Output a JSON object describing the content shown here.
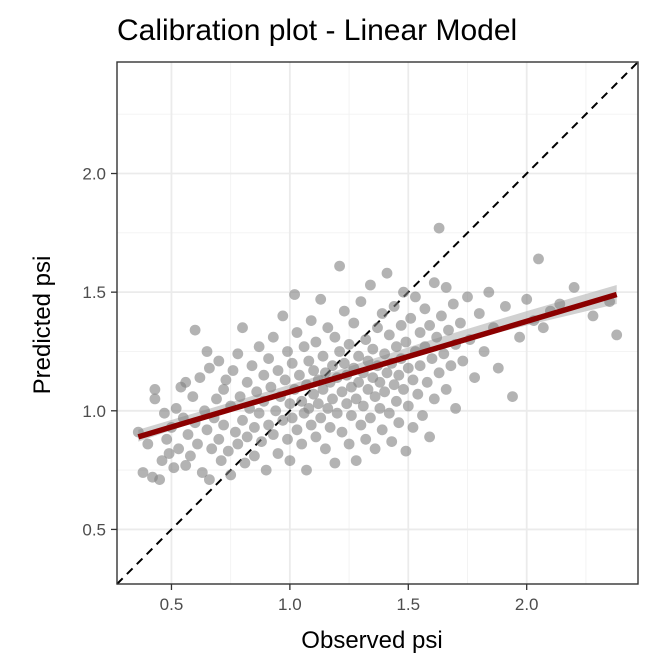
{
  "chart_data": {
    "type": "scatter",
    "title": "Calibration plot - Linear Model",
    "xlabel": "Observed psi",
    "ylabel": "Predicted psi",
    "xlim": [
      0.27,
      2.47
    ],
    "ylim": [
      0.27,
      2.47
    ],
    "x_ticks": [
      0.5,
      1.0,
      1.5,
      2.0
    ],
    "x_tick_labels": [
      "0.5",
      "1.0",
      "1.5",
      "2.0"
    ],
    "y_ticks": [
      0.5,
      1.0,
      1.5,
      2.0
    ],
    "y_tick_labels": [
      "0.5",
      "1.0",
      "1.5",
      "2.0"
    ],
    "grid": true,
    "point_color": "#808080",
    "fit_color": "#8B0000",
    "ribbon_color": "#bdbdbd",
    "reference_line": {
      "slope": 1,
      "intercept": 0,
      "style": "dashed",
      "color": "#000000"
    },
    "fit_line": {
      "x": [
        0.36,
        2.38
      ],
      "y": [
        0.89,
        1.49
      ]
    },
    "ribbon": {
      "x": [
        0.36,
        0.8,
        1.2,
        1.6,
        2.0,
        2.38
      ],
      "lower": [
        0.87,
        1.02,
        1.14,
        1.26,
        1.36,
        1.45
      ],
      "upper": [
        0.92,
        1.05,
        1.17,
        1.3,
        1.42,
        1.53
      ]
    },
    "points": [
      [
        0.36,
        0.91
      ],
      [
        0.38,
        0.74
      ],
      [
        0.4,
        0.86
      ],
      [
        0.42,
        0.72
      ],
      [
        0.43,
        1.09
      ],
      [
        0.43,
        1.05
      ],
      [
        0.45,
        0.71
      ],
      [
        0.46,
        0.79
      ],
      [
        0.47,
        0.99
      ],
      [
        0.48,
        0.88
      ],
      [
        0.49,
        0.82
      ],
      [
        0.5,
        0.93
      ],
      [
        0.51,
        0.76
      ],
      [
        0.52,
        1.01
      ],
      [
        0.53,
        0.84
      ],
      [
        0.54,
        1.1
      ],
      [
        0.55,
        0.97
      ],
      [
        0.56,
        0.77
      ],
      [
        0.56,
        1.12
      ],
      [
        0.57,
        0.9
      ],
      [
        0.58,
        0.81
      ],
      [
        0.59,
        1.06
      ],
      [
        0.6,
        0.95
      ],
      [
        0.6,
        1.34
      ],
      [
        0.61,
        0.86
      ],
      [
        0.62,
        1.14
      ],
      [
        0.63,
        0.74
      ],
      [
        0.64,
        1.0
      ],
      [
        0.65,
        0.92
      ],
      [
        0.65,
        1.25
      ],
      [
        0.66,
        0.71
      ],
      [
        0.66,
        1.18
      ],
      [
        0.67,
        0.84
      ],
      [
        0.68,
        0.97
      ],
      [
        0.69,
        1.05
      ],
      [
        0.7,
        0.88
      ],
      [
        0.7,
        1.21
      ],
      [
        0.71,
        0.79
      ],
      [
        0.72,
        1.09
      ],
      [
        0.72,
        0.94
      ],
      [
        0.73,
        1.13
      ],
      [
        0.74,
        0.83
      ],
      [
        0.75,
        1.02
      ],
      [
        0.75,
        0.73
      ],
      [
        0.76,
        1.17
      ],
      [
        0.77,
        0.91
      ],
      [
        0.78,
        1.24
      ],
      [
        0.78,
        0.86
      ],
      [
        0.79,
        1.06
      ],
      [
        0.8,
        0.96
      ],
      [
        0.8,
        1.35
      ],
      [
        0.81,
        0.78
      ],
      [
        0.82,
        1.12
      ],
      [
        0.82,
        0.89
      ],
      [
        0.83,
        1.01
      ],
      [
        0.84,
        1.19
      ],
      [
        0.85,
        0.93
      ],
      [
        0.85,
        0.81
      ],
      [
        0.86,
        1.08
      ],
      [
        0.87,
        1.27
      ],
      [
        0.87,
        0.99
      ],
      [
        0.88,
        0.87
      ],
      [
        0.89,
        1.15
      ],
      [
        0.89,
        1.04
      ],
      [
        0.9,
        0.75
      ],
      [
        0.91,
        0.94
      ],
      [
        0.91,
        1.22
      ],
      [
        0.92,
        1.1
      ],
      [
        0.93,
        0.9
      ],
      [
        0.93,
        1.31
      ],
      [
        0.94,
        1.0
      ],
      [
        0.95,
        0.82
      ],
      [
        0.95,
        1.17
      ],
      [
        0.96,
        1.06
      ],
      [
        0.97,
        0.96
      ],
      [
        0.97,
        1.4
      ],
      [
        0.98,
        1.13
      ],
      [
        0.99,
        0.88
      ],
      [
        0.99,
        1.25
      ],
      [
        1.0,
        1.03
      ],
      [
        1.0,
        0.79
      ],
      [
        1.01,
        1.2
      ],
      [
        1.01,
        0.97
      ],
      [
        1.02,
        1.49
      ],
      [
        1.02,
        1.09
      ],
      [
        1.03,
        0.92
      ],
      [
        1.03,
        1.33
      ],
      [
        1.04,
        1.15
      ],
      [
        1.05,
        0.86
      ],
      [
        1.05,
        1.04
      ],
      [
        1.06,
        1.27
      ],
      [
        1.06,
        0.99
      ],
      [
        1.07,
        1.11
      ],
      [
        1.07,
        0.75
      ],
      [
        1.08,
        1.21
      ],
      [
        1.08,
        1.01
      ],
      [
        1.09,
        0.94
      ],
      [
        1.09,
        1.38
      ],
      [
        1.1,
        1.07
      ],
      [
        1.1,
        1.17
      ],
      [
        1.11,
        0.89
      ],
      [
        1.11,
        1.29
      ],
      [
        1.12,
        1.03
      ],
      [
        1.12,
        1.13
      ],
      [
        1.13,
        0.97
      ],
      [
        1.13,
        1.47
      ],
      [
        1.14,
        1.09
      ],
      [
        1.14,
        1.23
      ],
      [
        1.15,
        0.84
      ],
      [
        1.15,
        1.16
      ],
      [
        1.16,
        1.01
      ],
      [
        1.16,
        1.35
      ],
      [
        1.17,
        1.12
      ],
      [
        1.17,
        0.93
      ],
      [
        1.18,
        1.19
      ],
      [
        1.18,
        1.05
      ],
      [
        1.19,
        1.31
      ],
      [
        1.19,
        0.78
      ],
      [
        1.2,
        1.14
      ],
      [
        1.2,
        0.99
      ],
      [
        1.21,
        1.25
      ],
      [
        1.21,
        1.61
      ],
      [
        1.22,
        1.08
      ],
      [
        1.22,
        0.91
      ],
      [
        1.23,
        1.2
      ],
      [
        1.23,
        1.42
      ],
      [
        1.24,
        1.03
      ],
      [
        1.24,
        1.15
      ],
      [
        1.25,
        0.86
      ],
      [
        1.25,
        1.28
      ],
      [
        1.26,
        1.1
      ],
      [
        1.26,
        0.98
      ],
      [
        1.27,
        1.37
      ],
      [
        1.27,
        1.18
      ],
      [
        1.28,
        1.05
      ],
      [
        1.28,
        0.79
      ],
      [
        1.29,
        1.23
      ],
      [
        1.29,
        1.12
      ],
      [
        1.3,
        0.94
      ],
      [
        1.3,
        1.46
      ],
      [
        1.31,
        1.16
      ],
      [
        1.31,
        1.02
      ],
      [
        1.32,
        1.3
      ],
      [
        1.32,
        0.88
      ],
      [
        1.33,
        1.21
      ],
      [
        1.33,
        1.09
      ],
      [
        1.34,
        1.53
      ],
      [
        1.34,
        0.97
      ],
      [
        1.35,
        1.14
      ],
      [
        1.35,
        1.26
      ],
      [
        1.36,
        1.06
      ],
      [
        1.36,
        0.84
      ],
      [
        1.37,
        1.35
      ],
      [
        1.37,
        1.19
      ],
      [
        1.38,
        1.01
      ],
      [
        1.38,
        1.12
      ],
      [
        1.39,
        1.41
      ],
      [
        1.39,
        0.92
      ],
      [
        1.4,
        1.24
      ],
      [
        1.4,
        1.08
      ],
      [
        1.41,
        1.58
      ],
      [
        1.41,
        1.16
      ],
      [
        1.42,
        0.99
      ],
      [
        1.42,
        1.32
      ],
      [
        1.43,
        1.2
      ],
      [
        1.43,
        0.87
      ],
      [
        1.44,
        1.11
      ],
      [
        1.44,
        1.44
      ],
      [
        1.45,
        1.27
      ],
      [
        1.45,
        1.04
      ],
      [
        1.46,
        1.15
      ],
      [
        1.46,
        0.95
      ],
      [
        1.47,
        1.36
      ],
      [
        1.47,
        1.22
      ],
      [
        1.48,
        1.09
      ],
      [
        1.48,
        1.5
      ],
      [
        1.49,
        0.83
      ],
      [
        1.49,
        1.29
      ],
      [
        1.5,
        1.18
      ],
      [
        1.5,
        1.02
      ],
      [
        1.51,
        1.39
      ],
      [
        1.52,
        1.13
      ],
      [
        1.52,
        0.93
      ],
      [
        1.53,
        1.25
      ],
      [
        1.53,
        1.48
      ],
      [
        1.54,
        1.07
      ],
      [
        1.55,
        1.33
      ],
      [
        1.55,
        1.19
      ],
      [
        1.56,
        0.98
      ],
      [
        1.57,
        1.43
      ],
      [
        1.57,
        1.27
      ],
      [
        1.58,
        1.12
      ],
      [
        1.59,
        1.36
      ],
      [
        1.59,
        0.89
      ],
      [
        1.6,
        1.22
      ],
      [
        1.61,
        1.54
      ],
      [
        1.61,
        1.05
      ],
      [
        1.62,
        1.31
      ],
      [
        1.63,
        1.16
      ],
      [
        1.63,
        1.77
      ],
      [
        1.64,
        1.4
      ],
      [
        1.65,
        1.24
      ],
      [
        1.66,
        1.09
      ],
      [
        1.66,
        1.52
      ],
      [
        1.67,
        1.34
      ],
      [
        1.68,
        1.19
      ],
      [
        1.69,
        1.45
      ],
      [
        1.7,
        1.28
      ],
      [
        1.7,
        1.01
      ],
      [
        1.72,
        1.37
      ],
      [
        1.73,
        1.21
      ],
      [
        1.75,
        1.48
      ],
      [
        1.76,
        1.3
      ],
      [
        1.78,
        1.14
      ],
      [
        1.8,
        1.41
      ],
      [
        1.82,
        1.25
      ],
      [
        1.84,
        1.5
      ],
      [
        1.86,
        1.35
      ],
      [
        1.88,
        1.18
      ],
      [
        1.91,
        1.44
      ],
      [
        1.94,
        1.06
      ],
      [
        1.97,
        1.31
      ],
      [
        2.0,
        1.47
      ],
      [
        2.03,
        1.38
      ],
      [
        2.05,
        1.64
      ],
      [
        2.07,
        1.35
      ],
      [
        2.1,
        1.42
      ],
      [
        2.14,
        1.45
      ],
      [
        2.2,
        1.52
      ],
      [
        2.28,
        1.4
      ],
      [
        2.35,
        1.46
      ],
      [
        2.38,
        1.32
      ]
    ]
  }
}
